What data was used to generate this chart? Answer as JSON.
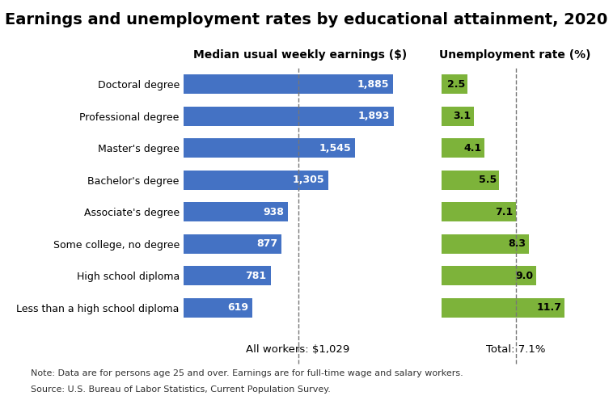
{
  "title": "Earnings and unemployment rates by educational attainment, 2020",
  "categories": [
    "Doctoral degree",
    "Professional degree",
    "Master's degree",
    "Bachelor's degree",
    "Associate's degree",
    "Some college, no degree",
    "High school diploma",
    "Less than a high school diploma"
  ],
  "earnings": [
    1885,
    1893,
    1545,
    1305,
    938,
    877,
    781,
    619
  ],
  "unemployment": [
    2.5,
    3.1,
    4.1,
    5.5,
    7.1,
    8.3,
    9.0,
    11.7
  ],
  "earnings_color": "#4472C4",
  "unemployment_color": "#7DB33A",
  "earnings_label": "Median usual weekly earnings ($)",
  "unemployment_label": "Unemployment rate (%)",
  "all_workers_label": "All workers: $1,029",
  "all_workers_value": 1029,
  "total_label": "Total: 7.1%",
  "total_value": 7.1,
  "note_line1": "Note: Data are for persons age 25 and over. Earnings are for full-time wage and salary workers.",
  "note_line2": "Source: U.S. Bureau of Labor Statistics, Current Population Survey.",
  "earnings_xlim": [
    0,
    2100
  ],
  "unemployment_xlim": [
    0,
    14
  ],
  "background_color": "#FFFFFF",
  "bar_height": 0.6,
  "title_fontsize": 14,
  "header_fontsize": 10,
  "tick_fontsize": 9,
  "value_fontsize": 9,
  "note_fontsize": 8,
  "annotation_fontsize": 9.5
}
